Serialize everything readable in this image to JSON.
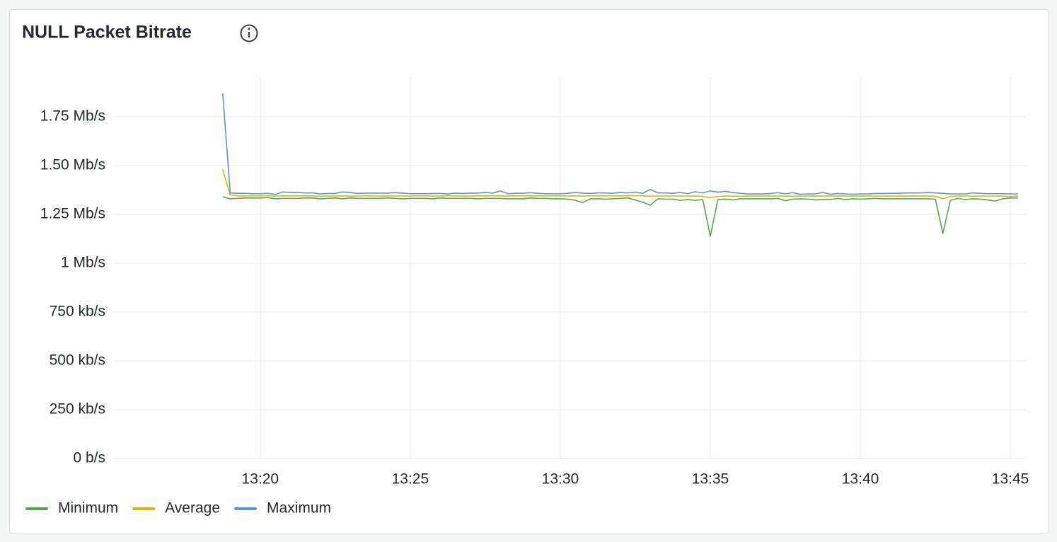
{
  "chart_data": {
    "type": "line",
    "title": "NULL Packet Bitrate",
    "grid": true,
    "legend": "bottom-left",
    "xlim": [
      "13:15:06",
      "13:45:31"
    ],
    "xticks": [
      "13:20",
      "13:25",
      "13:30",
      "13:35",
      "13:40",
      "13:45"
    ],
    "ylim": [
      0,
      2000000
    ],
    "yticks": [
      {
        "value": 0,
        "label": "0 b/s"
      },
      {
        "value": 250000,
        "label": "250 kb/s"
      },
      {
        "value": 500000,
        "label": "500 kb/s"
      },
      {
        "value": 750000,
        "label": "750 kb/s"
      },
      {
        "value": 1000000,
        "label": "1 Mb/s"
      },
      {
        "value": 1250000,
        "label": "1.25 Mb/s"
      },
      {
        "value": 1500000,
        "label": "1.50 Mb/s"
      },
      {
        "value": 1750000,
        "label": "1.75 Mb/s"
      }
    ],
    "x": [
      "13:18:45",
      "13:19:00",
      "13:19:15",
      "13:19:30",
      "13:19:45",
      "13:20:00",
      "13:20:15",
      "13:20:30",
      "13:20:45",
      "13:21:00",
      "13:21:15",
      "13:21:30",
      "13:21:45",
      "13:22:00",
      "13:22:15",
      "13:22:30",
      "13:22:45",
      "13:23:00",
      "13:23:15",
      "13:23:30",
      "13:23:45",
      "13:24:00",
      "13:24:15",
      "13:24:30",
      "13:24:45",
      "13:25:00",
      "13:25:15",
      "13:25:30",
      "13:25:45",
      "13:26:00",
      "13:26:15",
      "13:26:30",
      "13:26:45",
      "13:27:00",
      "13:27:15",
      "13:27:30",
      "13:27:45",
      "13:28:00",
      "13:28:15",
      "13:28:30",
      "13:28:45",
      "13:29:00",
      "13:29:15",
      "13:29:30",
      "13:29:45",
      "13:30:00",
      "13:30:15",
      "13:30:30",
      "13:30:45",
      "13:31:00",
      "13:31:15",
      "13:31:30",
      "13:31:45",
      "13:32:00",
      "13:32:15",
      "13:32:30",
      "13:32:45",
      "13:33:00",
      "13:33:15",
      "13:33:30",
      "13:33:45",
      "13:34:00",
      "13:34:15",
      "13:34:30",
      "13:34:45",
      "13:35:00",
      "13:35:15",
      "13:35:30",
      "13:35:45",
      "13:36:00",
      "13:36:15",
      "13:36:30",
      "13:36:45",
      "13:37:00",
      "13:37:15",
      "13:37:30",
      "13:37:45",
      "13:38:00",
      "13:38:15",
      "13:38:30",
      "13:38:45",
      "13:39:00",
      "13:39:15",
      "13:39:30",
      "13:39:45",
      "13:40:00",
      "13:40:15",
      "13:40:30",
      "13:40:45",
      "13:41:00",
      "13:41:15",
      "13:41:30",
      "13:41:45",
      "13:42:00",
      "13:42:15",
      "13:42:30",
      "13:42:45",
      "13:43:00",
      "13:43:15",
      "13:43:30",
      "13:43:45",
      "13:44:00",
      "13:44:15",
      "13:44:30",
      "13:44:45",
      "13:45:00",
      "13:45:15"
    ],
    "series": [
      {
        "name": "Minimum",
        "color": "#56a64b",
        "values": [
          1340000,
          1330000,
          1332000,
          1334000,
          1334000,
          1334000,
          1336000,
          1330000,
          1332000,
          1332000,
          1332000,
          1334000,
          1334000,
          1330000,
          1332000,
          1334000,
          1330000,
          1334000,
          1332000,
          1332000,
          1332000,
          1332000,
          1334000,
          1332000,
          1330000,
          1332000,
          1332000,
          1332000,
          1330000,
          1334000,
          1332000,
          1332000,
          1332000,
          1332000,
          1330000,
          1332000,
          1332000,
          1332000,
          1330000,
          1330000,
          1330000,
          1334000,
          1332000,
          1332000,
          1330000,
          1330000,
          1328000,
          1322000,
          1310000,
          1330000,
          1330000,
          1328000,
          1330000,
          1332000,
          1334000,
          1324000,
          1312000,
          1297000,
          1330000,
          1328000,
          1328000,
          1322000,
          1326000,
          1322000,
          1326000,
          1138000,
          1326000,
          1328000,
          1324000,
          1330000,
          1330000,
          1330000,
          1330000,
          1330000,
          1332000,
          1320000,
          1328000,
          1330000,
          1328000,
          1324000,
          1326000,
          1326000,
          1332000,
          1326000,
          1330000,
          1328000,
          1330000,
          1332000,
          1330000,
          1330000,
          1330000,
          1330000,
          1330000,
          1330000,
          1330000,
          1328000,
          1152000,
          1322000,
          1332000,
          1326000,
          1330000,
          1328000,
          1324000,
          1318000,
          1330000,
          1334000,
          1334000
        ]
      },
      {
        "name": "Average",
        "color": "#e0b400",
        "values": [
          1480000,
          1350000,
          1345000,
          1345000,
          1345000,
          1345000,
          1346000,
          1344000,
          1345000,
          1345000,
          1345000,
          1345000,
          1345000,
          1343000,
          1344000,
          1344000,
          1345000,
          1344000,
          1344000,
          1345000,
          1345000,
          1344000,
          1345000,
          1344000,
          1344000,
          1344000,
          1345000,
          1345000,
          1344000,
          1344000,
          1345000,
          1345000,
          1344000,
          1344000,
          1345000,
          1345000,
          1345000,
          1345000,
          1344000,
          1345000,
          1345000,
          1345000,
          1345000,
          1345000,
          1345000,
          1345000,
          1344000,
          1345000,
          1343000,
          1345000,
          1345000,
          1345000,
          1345000,
          1345000,
          1345000,
          1346000,
          1345000,
          1343000,
          1344000,
          1344000,
          1344000,
          1344000,
          1344000,
          1344000,
          1342000,
          1335000,
          1342000,
          1344000,
          1344000,
          1343000,
          1344000,
          1344000,
          1344000,
          1344000,
          1344000,
          1344000,
          1343000,
          1344000,
          1344000,
          1344000,
          1344000,
          1344000,
          1344000,
          1344000,
          1344000,
          1344000,
          1344000,
          1344000,
          1344000,
          1344000,
          1344000,
          1344000,
          1344000,
          1344000,
          1344000,
          1343000,
          1330000,
          1342000,
          1344000,
          1344000,
          1344000,
          1344000,
          1344000,
          1344000,
          1344000,
          1342000,
          1344000
        ]
      },
      {
        "name": "Maximum",
        "color": "#5794f2",
        "values": [
          1870000,
          1360000,
          1358000,
          1358000,
          1356000,
          1356000,
          1358000,
          1352000,
          1365000,
          1362000,
          1362000,
          1360000,
          1360000,
          1355000,
          1357000,
          1357000,
          1365000,
          1362000,
          1357000,
          1359000,
          1359000,
          1359000,
          1359000,
          1361000,
          1359000,
          1356000,
          1356000,
          1356000,
          1357000,
          1357000,
          1355000,
          1359000,
          1357000,
          1359000,
          1359000,
          1362000,
          1359000,
          1370000,
          1356000,
          1358000,
          1358000,
          1361000,
          1358000,
          1356000,
          1356000,
          1356000,
          1358000,
          1362000,
          1359000,
          1357000,
          1360000,
          1360000,
          1358000,
          1362000,
          1360000,
          1364000,
          1358000,
          1378000,
          1360000,
          1360000,
          1358000,
          1362000,
          1356000,
          1366000,
          1360000,
          1370000,
          1364000,
          1368000,
          1362000,
          1358000,
          1355000,
          1355000,
          1355000,
          1357000,
          1361000,
          1355000,
          1361000,
          1353000,
          1355000,
          1355000,
          1362000,
          1353000,
          1357000,
          1355000,
          1353000,
          1355000,
          1355000,
          1357000,
          1357000,
          1358000,
          1358000,
          1360000,
          1360000,
          1360000,
          1362000,
          1360000,
          1358000,
          1355000,
          1355000,
          1355000,
          1360000,
          1358000,
          1356000,
          1356000,
          1356000,
          1355000,
          1355000
        ]
      }
    ]
  }
}
